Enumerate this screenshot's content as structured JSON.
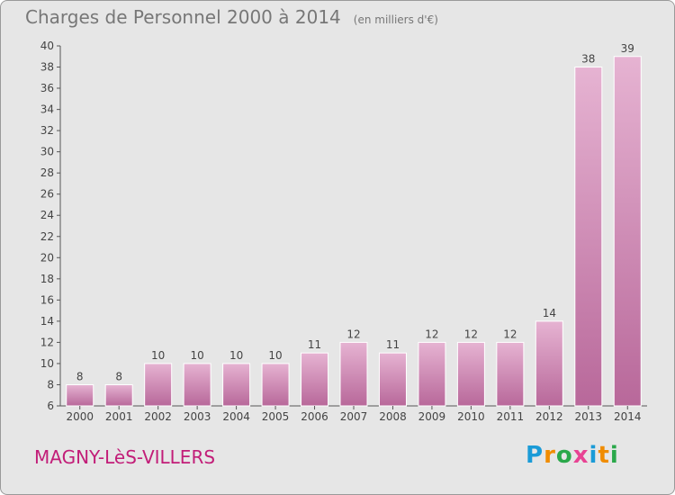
{
  "title": "Charges de Personnel 2000 à 2014",
  "subtitle": "(en milliers d'€)",
  "town": "MAGNY-LèS-VILLERS",
  "logo": {
    "letters": [
      "P",
      "r",
      "o",
      "x",
      "i",
      "t",
      "i"
    ],
    "colors": [
      "#1a9bd7",
      "#f08c00",
      "#2aa84a",
      "#e84393",
      "#1a9bd7",
      "#f08c00",
      "#2aa84a"
    ]
  },
  "chart_data": {
    "type": "bar",
    "title": "Charges de Personnel 2000 à 2014",
    "subtitle": "(en milliers d'€)",
    "categories": [
      "2000",
      "2001",
      "2002",
      "2003",
      "2004",
      "2005",
      "2006",
      "2007",
      "2008",
      "2009",
      "2010",
      "2011",
      "2012",
      "2013",
      "2014"
    ],
    "values": [
      8,
      8,
      10,
      10,
      10,
      10,
      11,
      12,
      11,
      12,
      12,
      12,
      14,
      38,
      39
    ],
    "ylim": [
      6,
      40
    ],
    "yticks": [
      6,
      8,
      10,
      12,
      14,
      16,
      18,
      20,
      22,
      24,
      26,
      28,
      30,
      32,
      34,
      36,
      38,
      40
    ],
    "grid": false,
    "bar_color": "#d9a0c2"
  }
}
